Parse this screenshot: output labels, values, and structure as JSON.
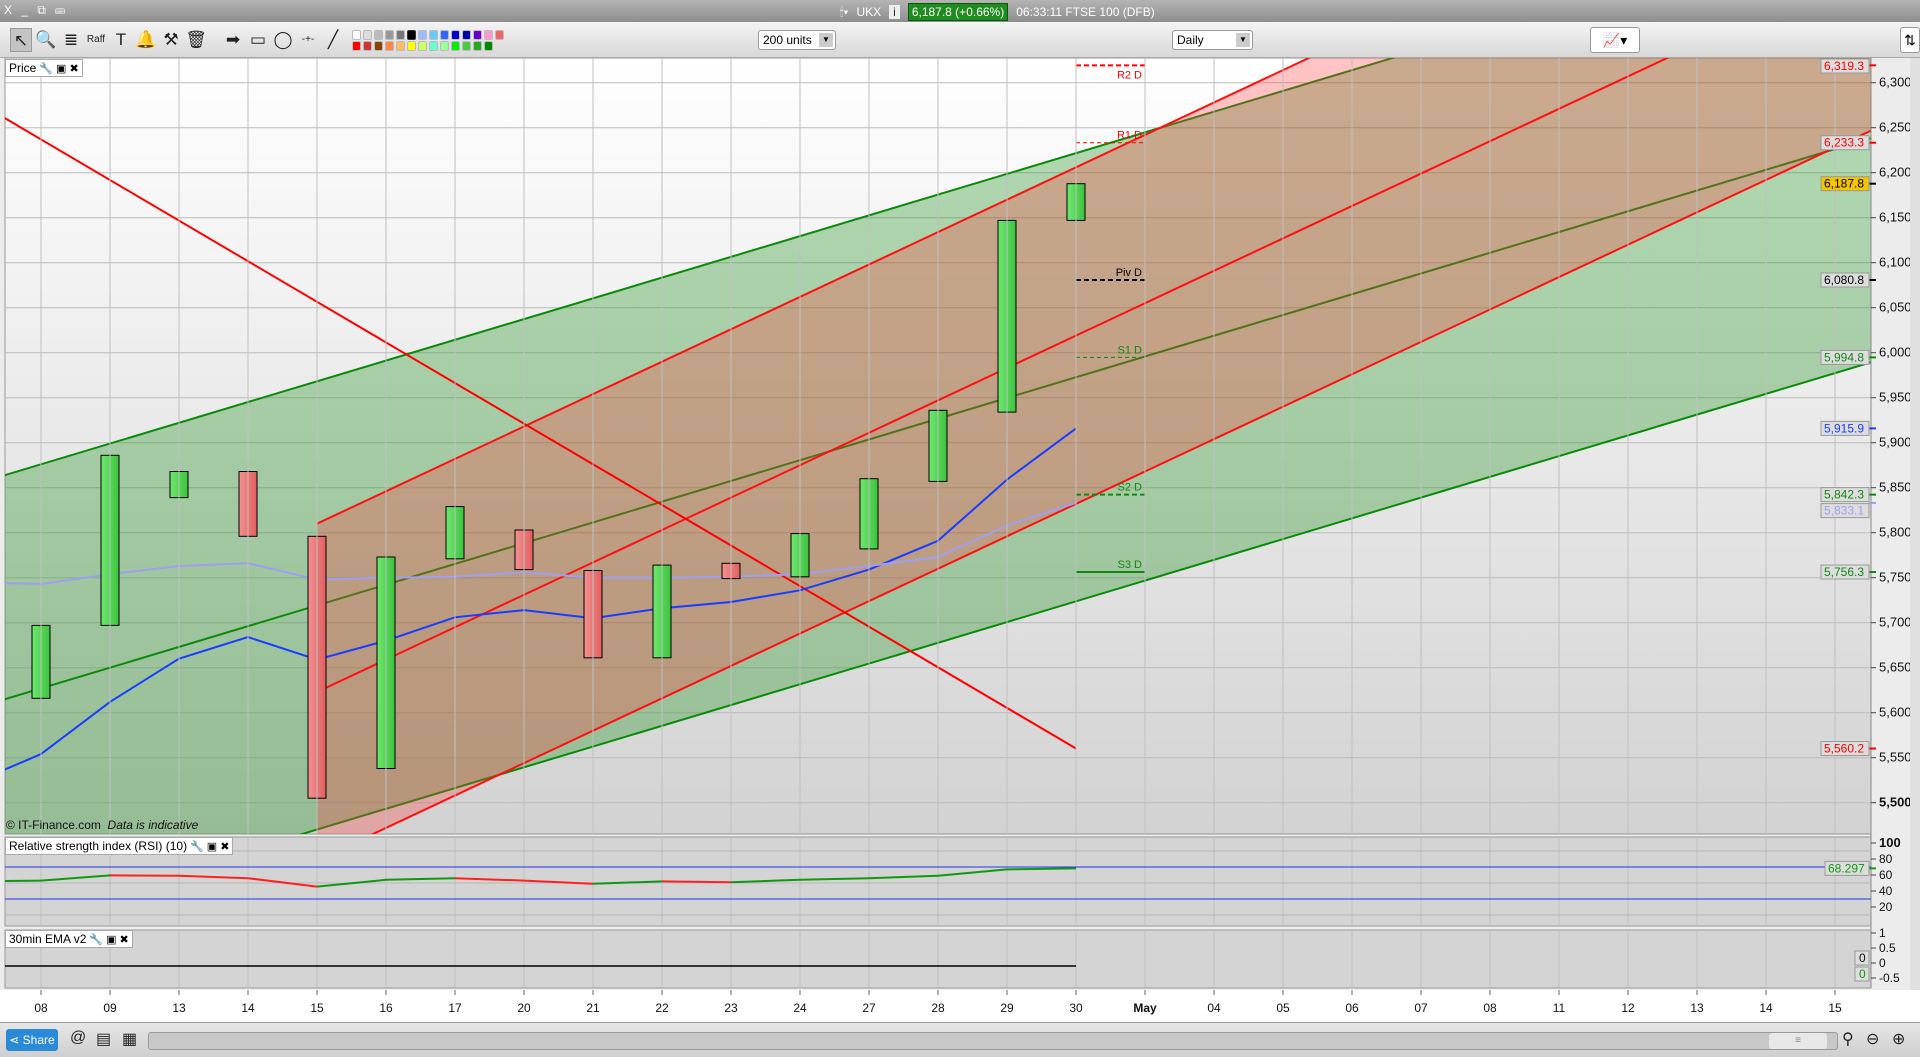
{
  "titlebar": {
    "window_controls": "X _ ⧉ ⌨",
    "symbol": "UKX",
    "info_icon": "i",
    "price_badge": "6,187.8 (+0.66%)",
    "time_market": "06:33:11 FTSE 100 (DFB)"
  },
  "toolbar": {
    "tools": [
      {
        "name": "pointer-tool",
        "glyph": "↖"
      },
      {
        "name": "zoom-tool",
        "glyph": "🔍"
      },
      {
        "name": "fibonacci-tool",
        "glyph": "≣"
      },
      {
        "name": "raff-channel-tool",
        "glyph": "Raff"
      },
      {
        "name": "text-tool",
        "glyph": "T"
      },
      {
        "name": "alert-tool",
        "glyph": "🔔"
      },
      {
        "name": "settings-tool",
        "glyph": "⚒"
      },
      {
        "name": "delete-tool",
        "glyph": "🗑"
      },
      {
        "name": "arrow-tool",
        "glyph": "➡"
      },
      {
        "name": "rectangle-tool",
        "glyph": "▭"
      },
      {
        "name": "ellipse-tool",
        "glyph": "◯"
      },
      {
        "name": "horizontal-line-tool",
        "glyph": "-+-"
      },
      {
        "name": "trend-line-tool",
        "glyph": "╱"
      }
    ],
    "palette": [
      "#ffffff",
      "#dddddd",
      "#bbbbbb",
      "#999999",
      "#777777",
      "#000000",
      "#99bbff",
      "#66ccff",
      "#3366ff",
      "#0000cc",
      "#0000aa",
      "#6600cc",
      "#ff99cc",
      "#ee6666",
      "#ff0000",
      "#cc3333",
      "#884400",
      "#ff8844",
      "#ffbb66",
      "#ffff00",
      "#ccff66",
      "#66ffcc",
      "#99ff99",
      "#00ee00",
      "#44cc44",
      "#22aa22",
      "#008800"
    ],
    "units_select": "200 units",
    "interval_select": "Daily",
    "indicator_icon": "indicator-menu"
  },
  "panes": {
    "price_label": "Price",
    "rsi_label": "Relative strength index (RSI) (10)",
    "ema_label": "30min EMA v2",
    "copyright": "© IT-Finance.com",
    "disclaimer": "Data is indicative"
  },
  "chart_data": {
    "type": "candlestick",
    "dates": [
      "08",
      "09",
      "13",
      "14",
      "15",
      "16",
      "17",
      "20",
      "21",
      "22",
      "23",
      "24",
      "27",
      "28",
      "29",
      "30",
      "May",
      "04",
      "05",
      "06",
      "07",
      "08",
      "11",
      "12",
      "13",
      "14",
      "15"
    ],
    "candles": [
      {
        "d": "08",
        "o": 5616,
        "h": 5729,
        "l": 5571,
        "c": 5697
      },
      {
        "d": "09",
        "o": 5697,
        "h": 5888,
        "l": 5686,
        "c": 5886
      },
      {
        "d": "13",
        "o": 5839,
        "h": 5897,
        "l": 5800,
        "c": 5868
      },
      {
        "d": "14",
        "o": 5868,
        "h": 5944,
        "l": 5777,
        "c": 5796
      },
      {
        "d": "15",
        "o": 5796,
        "h": 5800,
        "l": 5497,
        "c": 5505
      },
      {
        "d": "16",
        "o": 5538,
        "h": 5781,
        "l": 5529,
        "c": 5773
      },
      {
        "d": "17",
        "o": 5771,
        "h": 5838,
        "l": 5745,
        "c": 5829
      },
      {
        "d": "20",
        "o": 5803,
        "h": 5849,
        "l": 5705,
        "c": 5759
      },
      {
        "d": "21",
        "o": 5758,
        "h": 5769,
        "l": 5625,
        "c": 5661
      },
      {
        "d": "22",
        "o": 5661,
        "h": 5786,
        "l": 5628,
        "c": 5764
      },
      {
        "d": "23",
        "o": 5766,
        "h": 5845,
        "l": 5728,
        "c": 5749
      },
      {
        "d": "24",
        "o": 5751,
        "h": 5812,
        "l": 5715,
        "c": 5799
      },
      {
        "d": "27",
        "o": 5782,
        "h": 5880,
        "l": 5774,
        "c": 5860
      },
      {
        "d": "28",
        "o": 5857,
        "h": 5980,
        "l": 5831,
        "c": 5936
      },
      {
        "d": "29",
        "o": 5934,
        "h": 6163,
        "l": 5929,
        "c": 6147
      },
      {
        "d": "30",
        "o": 6147,
        "h": 6212,
        "l": 6114,
        "c": 6187.8
      }
    ],
    "ma_fast": {
      "color": "#1a3cff",
      "values": [
        5554,
        5612,
        5660,
        5684,
        5659,
        5680,
        5706,
        5714,
        5705,
        5716,
        5723,
        5736,
        5759,
        5791,
        5859,
        5915.9
      ]
    },
    "ma_slow": {
      "color": "#9f9fef",
      "values": [
        5743,
        5754,
        5763,
        5766,
        5748,
        5750,
        5751,
        5756,
        5750,
        5750,
        5751,
        5754,
        5763,
        5773,
        5808,
        5833.1
      ]
    },
    "falling_line": {
      "color": "#ff0000",
      "from": {
        "d": "08",
        "p": 6237
      },
      "to": {
        "d": "30",
        "p": 5560.2
      }
    },
    "channels": [
      {
        "color": "#0a8a0a",
        "fill": "rgba(40,150,40,0.35)",
        "anchor": "08",
        "mid": 5627,
        "slope_per_bar": 23.05,
        "offset": 249
      },
      {
        "color": "#ff1010",
        "fill": "rgba(255,60,60,0.3)",
        "anchor": "15",
        "mid": 5623,
        "slope_per_bar": 36,
        "offset": 187
      }
    ],
    "pivots": [
      {
        "label": "R2 D",
        "value": 6319.3,
        "color": "#ff0000",
        "style": "dash-thick"
      },
      {
        "label": "R1 D",
        "value": 6233.3,
        "color": "#ff0000",
        "style": "dash-thin"
      },
      {
        "label": "Piv D",
        "value": 6080.8,
        "color": "#000000",
        "style": "dash-thick"
      },
      {
        "label": "S1 D",
        "value": 5994.8,
        "color": "#118811",
        "style": "dash-thin"
      },
      {
        "label": "S2 D",
        "value": 5842.3,
        "color": "#118811",
        "style": "dash-thick"
      },
      {
        "label": "S3 D",
        "value": 5756.3,
        "color": "#118811",
        "style": "solid"
      }
    ],
    "yticks": [
      5500,
      5550,
      5600,
      5650,
      5700,
      5750,
      5800,
      5850,
      5900,
      5950,
      6000,
      6050,
      6100,
      6150,
      6200,
      6250,
      6300
    ],
    "ylim": [
      5480,
      6330
    ],
    "tags": [
      {
        "text": "6,319.3",
        "value": 6319.3,
        "color": "#ff0000",
        "bg": "#dddddd"
      },
      {
        "text": "6,233.3",
        "value": 6233.3,
        "color": "#ff0000",
        "bg": "#dddddd"
      },
      {
        "text": "6,187.8",
        "value": 6187.8,
        "color": "#000000",
        "bg": "#f5c400"
      },
      {
        "text": "6,080.8",
        "value": 6080.8,
        "color": "#000000",
        "bg": "#dddddd"
      },
      {
        "text": "5,994.8",
        "value": 5994.8,
        "color": "#118811",
        "bg": "#dddddd"
      },
      {
        "text": "5,915.9",
        "value": 5915.9,
        "color": "#1a3cff",
        "bg": "#dddddd"
      },
      {
        "text": "5,842.3",
        "value": 5842.3,
        "color": "#118811",
        "bg": "#dddddd"
      },
      {
        "text": "5,833.1",
        "value": 5833.1,
        "color": "#9f9fef",
        "bg": "#dddddd"
      },
      {
        "text": "5,756.3",
        "value": 5756.3,
        "color": "#118811",
        "bg": "#dddddd"
      },
      {
        "text": "5,560.2",
        "value": 5560.2,
        "color": "#ff0000",
        "bg": "#dddddd"
      }
    ],
    "rsi": {
      "period": 10,
      "values": [
        52.9,
        59.6,
        59,
        56,
        45.4,
        54,
        56,
        53,
        49,
        52,
        51,
        54,
        56,
        59,
        67,
        68.297
      ],
      "levels": [
        30,
        70
      ],
      "ticks": [
        100,
        80,
        60,
        40,
        20
      ],
      "tag": "68.297"
    },
    "ema": {
      "values": [
        0,
        0,
        0,
        0,
        0,
        0,
        0,
        0,
        0,
        0,
        0,
        0,
        0,
        0,
        0,
        0
      ],
      "ticks": [
        "1",
        "0.5",
        "0",
        "-0.5"
      ],
      "tags": [
        "0",
        "0"
      ]
    }
  },
  "bottom": {
    "share_label": "Share"
  }
}
